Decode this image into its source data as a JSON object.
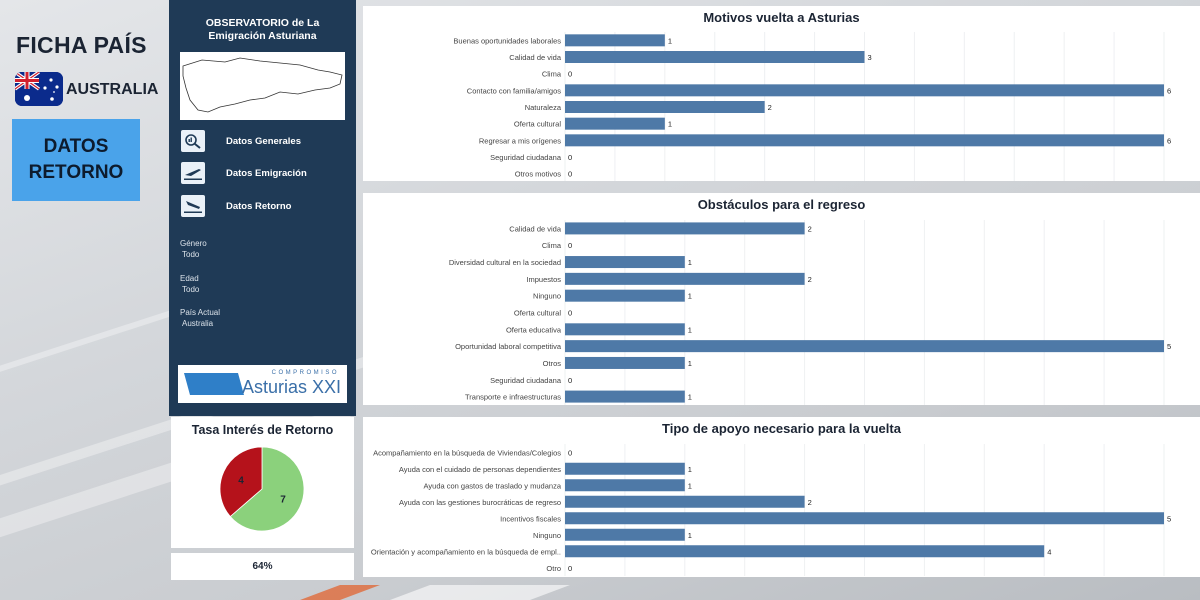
{
  "header": {
    "title": "FICHA PAÍS",
    "country": "AUSTRALIA",
    "section_button_line1": "DATOS",
    "section_button_line2": "RETORNO"
  },
  "nav": {
    "title_line1": "OBSERVATORIO de La",
    "title_line2": "Emigración Asturiana",
    "items": [
      {
        "label": "Datos Generales",
        "icon": "magnifier-chart-icon"
      },
      {
        "label": "Datos Emigración",
        "icon": "plane-takeoff-icon"
      },
      {
        "label": "Datos Retorno",
        "icon": "plane-landing-icon"
      }
    ],
    "filters": [
      {
        "label": "Género",
        "value": "Todo"
      },
      {
        "label": "Edad",
        "value": "Todo"
      },
      {
        "label": "País Actual",
        "value": "Australia"
      }
    ],
    "logo_small": "COMPROMISO",
    "logo_big": "Asturias XXI"
  },
  "pie": {
    "title": "Tasa Interés de Retorno",
    "percent_label": "64%"
  },
  "colors": {
    "bar": "#4e79a7",
    "nav_bg": "#1f3a56",
    "button": "#4aa3ea",
    "pie_yes": "#8bd17c",
    "pie_no": "#b5121b"
  },
  "chart_data": [
    {
      "type": "pie",
      "title": "Tasa Interés de Retorno",
      "slices": [
        {
          "value": 7,
          "color": "#8bd17c"
        },
        {
          "value": 4,
          "color": "#b5121b"
        }
      ]
    },
    {
      "type": "bar",
      "orientation": "horizontal",
      "title": "Motivos vuelta a Asturias",
      "categories": [
        "Buenas oportunidades laborales",
        "Calidad de vida",
        "Clima",
        "Contacto con familia/amigos",
        "Naturaleza",
        "Oferta cultural",
        "Regresar a mis orígenes",
        "Seguridad ciudadana",
        "Otros motivos"
      ],
      "values": [
        1,
        3,
        0,
        6,
        2,
        1,
        6,
        0,
        0
      ],
      "xlim": [
        0,
        6
      ]
    },
    {
      "type": "bar",
      "orientation": "horizontal",
      "title": "Obstáculos para el regreso",
      "categories": [
        "Calidad de vida",
        "Clima",
        "Diversidad cultural en la sociedad",
        "Impuestos",
        "Ninguno",
        "Oferta cultural",
        "Oferta educativa",
        "Oportunidad laboral competitiva",
        "Otros",
        "Seguridad ciudadana",
        "Transporte e infraestructuras"
      ],
      "values": [
        2,
        0,
        1,
        2,
        1,
        0,
        1,
        5,
        1,
        0,
        1
      ],
      "xlim": [
        0,
        5
      ]
    },
    {
      "type": "bar",
      "orientation": "horizontal",
      "title": "Tipo de apoyo necesario para la vuelta",
      "categories": [
        "Acompañamiento en la búsqueda de Viviendas/Colegios",
        "Ayuda con el cuidado de personas dependientes",
        "Ayuda con gastos de traslado y mudanza",
        "Ayuda con las gestiones burocráticas de regreso",
        "Incentivos fiscales",
        "Ninguno",
        "Orientación y acompañamiento en la búsqueda de empl..",
        "Otro"
      ],
      "values": [
        0,
        1,
        1,
        2,
        5,
        1,
        4,
        0
      ],
      "xlim": [
        0,
        5
      ]
    }
  ]
}
